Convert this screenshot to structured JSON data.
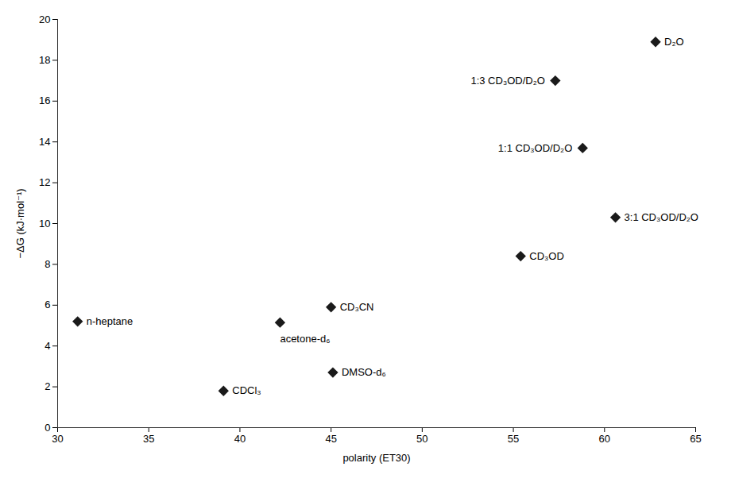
{
  "chart_data": {
    "type": "scatter",
    "x": [
      31.1,
      39.1,
      42.2,
      45.0,
      45.1,
      55.4,
      57.3,
      58.8,
      60.6,
      62.8
    ],
    "values": [
      5.2,
      1.8,
      5.15,
      5.9,
      2.7,
      8.4,
      17.0,
      13.7,
      10.3,
      18.9
    ],
    "labels": [
      "n-heptane",
      "CDCl₃",
      "acetone-d₆",
      "CD₃CN",
      "DMSO-d₆",
      "CD₃OD",
      "1:3 CD₃OD/D₂O",
      "1:1 CD₃OD/D₂O",
      "3:1 CD₃OD/D₂O",
      "D₂O"
    ],
    "color": "#1a1a1a",
    "marker": "diamond",
    "xlabel": "polarity (ET30)",
    "ylabel": "−ΔG (kJ·mol⁻¹)",
    "xlim": [
      30,
      65
    ],
    "ylim": [
      0,
      20
    ],
    "xticks": [
      30,
      35,
      40,
      45,
      50,
      55,
      60,
      65
    ],
    "yticks": [
      0,
      2,
      4,
      6,
      8,
      10,
      12,
      14,
      16,
      18,
      20
    ],
    "grid": false
  }
}
